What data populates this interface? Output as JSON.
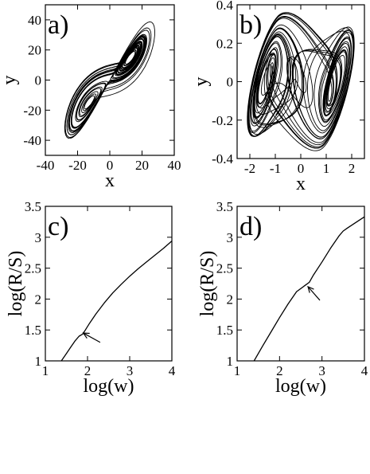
{
  "chart_data": [
    {
      "id": "a",
      "type": "line",
      "panel_label": "a)",
      "title": "",
      "xlabel": "x",
      "ylabel": "y",
      "xlim": [
        -40,
        40
      ],
      "ylim": [
        -50,
        50
      ],
      "xticks": [
        -40,
        -20,
        0,
        20,
        40
      ],
      "yticks": [
        -40,
        -20,
        0,
        20,
        40
      ],
      "attractor": {
        "system": "two-lobe",
        "x_scale": 28,
        "y_scale": 30,
        "lobe_centers": [
          [
            -14,
            -16
          ],
          [
            14,
            14
          ]
        ]
      }
    },
    {
      "id": "b",
      "type": "line",
      "panel_label": "b)",
      "title": "",
      "xlabel": "x",
      "ylabel": "y",
      "xlim": [
        -2.5,
        2.5
      ],
      "ylim": [
        -0.4,
        0.4
      ],
      "xticks": [
        -2,
        -1,
        0,
        1,
        2
      ],
      "yticks": [
        -0.4,
        -0.2,
        0,
        0.2,
        0.4
      ],
      "attractor": {
        "system": "double-scroll",
        "lobe_centers": [
          [
            -1.5,
            0
          ],
          [
            1.5,
            0
          ]
        ]
      }
    },
    {
      "id": "c",
      "type": "line",
      "panel_label": "c)",
      "title": "",
      "xlabel": "log(w)",
      "ylabel": "log(R/S)",
      "xlim": [
        1,
        4
      ],
      "ylim": [
        1,
        3.5
      ],
      "xticks": [
        1,
        2,
        3,
        4
      ],
      "yticks": [
        1,
        1.5,
        2,
        2.5,
        3,
        3.5
      ],
      "series": [
        {
          "x": [
            1.38,
            1.5,
            1.6,
            1.7,
            1.8,
            1.88,
            1.95,
            2.05,
            2.2,
            2.4,
            2.6,
            2.8,
            3.0,
            3.2,
            3.4,
            3.6,
            3.8,
            4.0
          ],
          "y": [
            1.0,
            1.12,
            1.22,
            1.32,
            1.4,
            1.43,
            1.5,
            1.61,
            1.76,
            1.94,
            2.1,
            2.24,
            2.37,
            2.49,
            2.6,
            2.71,
            2.82,
            2.94
          ]
        }
      ],
      "annotation": {
        "type": "arrow",
        "points_to": [
          1.9,
          1.45
        ],
        "from": [
          2.3,
          1.3
        ]
      }
    },
    {
      "id": "d",
      "type": "line",
      "panel_label": "d)",
      "title": "",
      "xlabel": "log(w)",
      "ylabel": "log(R/S)",
      "xlim": [
        1,
        4
      ],
      "ylim": [
        1,
        3.5
      ],
      "xticks": [
        1,
        2,
        3,
        4
      ],
      "yticks": [
        1,
        1.5,
        2,
        2.5,
        3,
        3.5
      ],
      "series": [
        {
          "x": [
            1.4,
            1.6,
            1.8,
            2.0,
            2.2,
            2.4,
            2.6,
            2.7,
            2.8,
            3.0,
            3.2,
            3.4,
            3.5,
            3.6,
            3.8,
            4.0
          ],
          "y": [
            1.0,
            1.24,
            1.47,
            1.7,
            1.92,
            2.12,
            2.22,
            2.27,
            2.39,
            2.6,
            2.82,
            3.02,
            3.1,
            3.15,
            3.24,
            3.33
          ]
        }
      ],
      "annotation": {
        "type": "arrow",
        "points_to": [
          2.67,
          2.2
        ],
        "from": [
          2.95,
          1.98
        ]
      }
    }
  ]
}
